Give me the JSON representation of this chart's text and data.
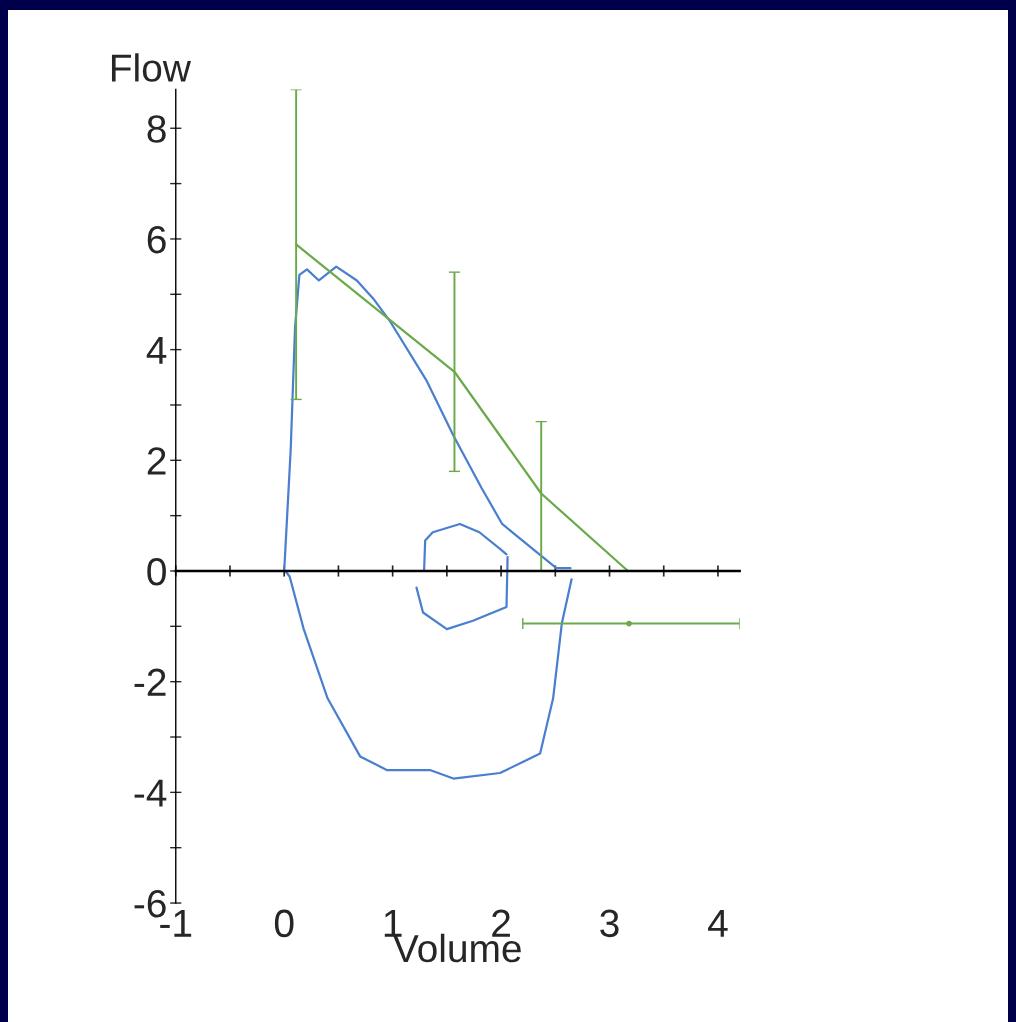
{
  "chart_data": {
    "type": "line",
    "xlabel": "Volume",
    "ylabel": "Flow",
    "xlim": [
      -1,
      4.2
    ],
    "ylim": [
      -6,
      8.7
    ],
    "xticks": [
      -1,
      {
        "value": -0.5,
        "label": null
      },
      0,
      {
        "value": 0.5,
        "label": null
      },
      1,
      {
        "value": 1.5,
        "label": null
      },
      2,
      {
        "value": 2.5,
        "label": null
      },
      3,
      {
        "value": 3.5,
        "label": null
      },
      4
    ],
    "yticks": [
      -6,
      {
        "value": -5,
        "label": null
      },
      -4,
      {
        "value": -3,
        "label": null
      },
      -2,
      {
        "value": -1,
        "label": null
      },
      0,
      {
        "value": 1,
        "label": null
      },
      2,
      {
        "value": 3,
        "label": null
      },
      4,
      {
        "value": 5,
        "label": null
      },
      6,
      {
        "value": 7,
        "label": null
      },
      8
    ],
    "series": [
      {
        "color": "#4a7fd0",
        "x": [
          0,
          0.06,
          0.1,
          0.14,
          0.21,
          0.32,
          0.48,
          0.67,
          0.83,
          0.98,
          1.31,
          1.56,
          1.82,
          2.01,
          2.26,
          2.51,
          2.64
        ],
        "values": [
          0,
          2.2,
          4.4,
          5.35,
          5.45,
          5.25,
          5.5,
          5.25,
          4.9,
          4.5,
          3.45,
          2.45,
          1.5,
          0.85,
          0.45,
          0.05,
          0.05
        ]
      },
      {
        "color": "#4a7fd0",
        "x": [
          2.65,
          2.56,
          2.48,
          2.36,
          1.99,
          1.56,
          1.35,
          0.95,
          0.7,
          0.4,
          0.18,
          0.05,
          0.01
        ],
        "values": [
          -0.15,
          -0.95,
          -2.3,
          -3.3,
          -3.65,
          -3.75,
          -3.6,
          -3.6,
          -3.35,
          -2.3,
          -1.05,
          -0.1,
          0
        ]
      },
      {
        "color": "#4a7fd0",
        "x": [
          1.22,
          1.28,
          1.5,
          1.74,
          2.05,
          2.06
        ],
        "values": [
          -0.3,
          -0.75,
          -1.05,
          -0.9,
          -0.65,
          0.25
        ]
      },
      {
        "color": "#4a7fd0",
        "x": [
          2.05,
          1.99,
          1.8,
          1.62,
          1.37,
          1.3,
          1.29
        ],
        "values": [
          0.3,
          0.4,
          0.7,
          0.85,
          0.7,
          0.55,
          0
        ]
      },
      {
        "color": "#6aaa4a",
        "x": [
          0.11,
          1.57,
          2.37,
          3.17
        ],
        "values": [
          5.9,
          3.6,
          1.4,
          0
        ],
        "errors": [
          [
            3.1,
            8.7
          ],
          [
            1.8,
            5.4
          ],
          [
            0,
            2.7
          ],
          null
        ]
      },
      {
        "type": "scatter",
        "color": "#6aaa4a",
        "x": [
          3.18
        ],
        "values": [
          -0.95
        ],
        "xerrors": [
          [
            2.2,
            4.2
          ]
        ]
      }
    ]
  }
}
